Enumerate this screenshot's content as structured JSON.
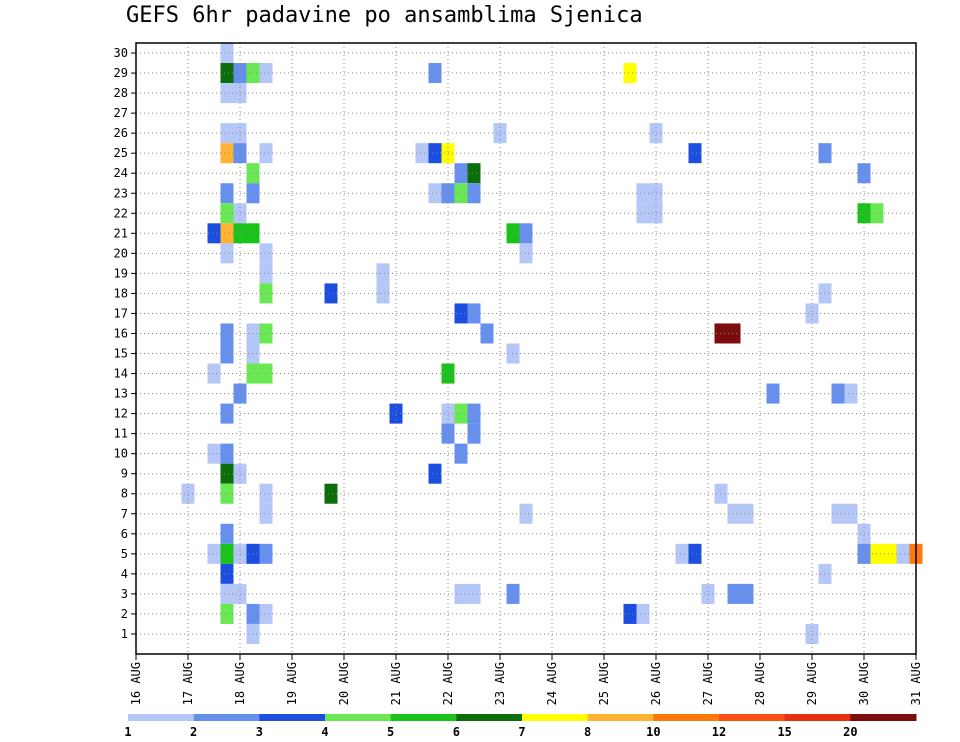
{
  "chart_data": {
    "type": "heatmap",
    "title": "GEFS 6hr padavine po ansamblima Sjenica",
    "xlabel": "",
    "ylabel": "",
    "x_tick_labels": [
      "16 AUG",
      "17 AUG",
      "18 AUG",
      "19 AUG",
      "20 AUG",
      "21 AUG",
      "22 AUG",
      "23 AUG",
      "24 AUG",
      "25 AUG",
      "26 AUG",
      "27 AUG",
      "28 AUG",
      "29 AUG",
      "30 AUG",
      "31 AUG"
    ],
    "x_range_steps": [
      0,
      60
    ],
    "y_tick_labels": [
      "1",
      "2",
      "3",
      "4",
      "5",
      "6",
      "7",
      "8",
      "9",
      "10",
      "11",
      "12",
      "13",
      "14",
      "15",
      "16",
      "17",
      "18",
      "19",
      "20",
      "21",
      "22",
      "23",
      "24",
      "25",
      "26",
      "27",
      "28",
      "29",
      "30"
    ],
    "grid": true,
    "colorbar": {
      "labels": [
        "1",
        "2",
        "3",
        "4",
        "5",
        "6",
        "7",
        "8",
        "10",
        "12",
        "15",
        "20"
      ],
      "colors": [
        "#b4c7f6",
        "#6790ee",
        "#1c4fe0",
        "#69e853",
        "#19c319",
        "#0b6e0b",
        "#ffff00",
        "#ffb233",
        "#ff7a0a",
        "#ff4e13",
        "#e6300f",
        "#7b0d0d"
      ]
    },
    "x_unit_note": "x index = 6-hour steps from 16 AUG 00Z",
    "cells": [
      [
        7,
        30,
        1
      ],
      [
        7,
        29,
        6
      ],
      [
        8,
        29,
        2
      ],
      [
        9,
        29,
        4
      ],
      [
        10,
        29,
        1
      ],
      [
        23,
        29,
        2
      ],
      [
        38,
        29,
        7
      ],
      [
        7,
        28,
        1
      ],
      [
        8,
        28,
        1
      ],
      [
        7,
        26,
        1
      ],
      [
        8,
        26,
        1
      ],
      [
        28,
        26,
        1
      ],
      [
        40,
        26,
        1
      ],
      [
        7,
        25,
        8
      ],
      [
        8,
        25,
        2
      ],
      [
        10,
        25,
        1
      ],
      [
        22,
        25,
        1
      ],
      [
        23,
        25,
        3
      ],
      [
        24,
        25,
        7
      ],
      [
        43,
        25,
        3
      ],
      [
        53,
        25,
        2
      ],
      [
        25,
        24,
        2
      ],
      [
        26,
        24,
        6
      ],
      [
        9,
        24,
        4
      ],
      [
        56,
        24,
        2
      ],
      [
        7,
        23,
        2
      ],
      [
        9,
        23,
        2
      ],
      [
        23,
        23,
        1
      ],
      [
        24,
        23,
        2
      ],
      [
        25,
        23,
        4
      ],
      [
        26,
        23,
        2
      ],
      [
        39,
        23,
        1
      ],
      [
        40,
        23,
        1
      ],
      [
        7,
        22,
        4
      ],
      [
        8,
        22,
        1
      ],
      [
        39,
        22,
        1
      ],
      [
        40,
        22,
        1
      ],
      [
        56,
        22,
        5
      ],
      [
        57,
        22,
        4
      ],
      [
        6,
        21,
        3
      ],
      [
        7,
        21,
        8
      ],
      [
        8,
        21,
        5
      ],
      [
        9,
        21,
        5
      ],
      [
        29,
        21,
        5
      ],
      [
        30,
        21,
        2
      ],
      [
        7,
        20,
        1
      ],
      [
        10,
        20,
        1
      ],
      [
        30,
        20,
        1
      ],
      [
        10,
        19,
        1
      ],
      [
        19,
        19,
        1
      ],
      [
        10,
        18,
        4
      ],
      [
        15,
        18,
        3
      ],
      [
        19,
        18,
        1
      ],
      [
        53,
        18,
        1
      ],
      [
        52,
        17,
        1
      ],
      [
        25,
        17,
        3
      ],
      [
        26,
        17,
        2
      ],
      [
        7,
        16,
        2
      ],
      [
        9,
        16,
        1
      ],
      [
        10,
        16,
        4
      ],
      [
        27,
        16,
        2
      ],
      [
        45,
        16,
        12
      ],
      [
        46,
        16,
        12
      ],
      [
        7,
        15,
        2
      ],
      [
        9,
        15,
        1
      ],
      [
        29,
        15,
        1
      ],
      [
        6,
        14,
        1
      ],
      [
        9,
        14,
        4
      ],
      [
        10,
        14,
        4
      ],
      [
        24,
        14,
        5
      ],
      [
        8,
        13,
        2
      ],
      [
        49,
        13,
        2
      ],
      [
        54,
        13,
        2
      ],
      [
        55,
        13,
        1
      ],
      [
        7,
        12,
        2
      ],
      [
        20,
        12,
        3
      ],
      [
        24,
        12,
        1
      ],
      [
        25,
        12,
        4
      ],
      [
        26,
        12,
        2
      ],
      [
        24,
        11,
        2
      ],
      [
        26,
        11,
        2
      ],
      [
        6,
        10,
        1
      ],
      [
        7,
        10,
        2
      ],
      [
        25,
        10,
        2
      ],
      [
        7,
        9,
        6
      ],
      [
        8,
        9,
        1
      ],
      [
        23,
        9,
        3
      ],
      [
        4,
        8,
        1
      ],
      [
        7,
        8,
        4
      ],
      [
        10,
        8,
        1
      ],
      [
        15,
        8,
        6
      ],
      [
        45,
        8,
        1
      ],
      [
        10,
        7,
        1
      ],
      [
        30,
        7,
        1
      ],
      [
        46,
        7,
        1
      ],
      [
        47,
        7,
        1
      ],
      [
        54,
        7,
        1
      ],
      [
        55,
        7,
        1
      ],
      [
        7,
        6,
        2
      ],
      [
        56,
        6,
        1
      ],
      [
        6,
        5,
        1
      ],
      [
        7,
        5,
        5
      ],
      [
        8,
        5,
        1
      ],
      [
        9,
        5,
        3
      ],
      [
        10,
        5,
        2
      ],
      [
        42,
        5,
        1
      ],
      [
        43,
        5,
        3
      ],
      [
        56,
        5,
        2
      ],
      [
        57,
        5,
        7
      ],
      [
        58,
        5,
        7
      ],
      [
        59,
        5,
        1
      ],
      [
        60,
        5,
        9
      ],
      [
        7,
        4,
        3
      ],
      [
        53,
        4,
        1
      ],
      [
        7,
        3,
        1
      ],
      [
        8,
        3,
        1
      ],
      [
        25,
        3,
        1
      ],
      [
        26,
        3,
        1
      ],
      [
        29,
        3,
        2
      ],
      [
        44,
        3,
        1
      ],
      [
        46,
        3,
        2
      ],
      [
        47,
        3,
        2
      ],
      [
        7,
        2,
        4
      ],
      [
        9,
        2,
        2
      ],
      [
        10,
        2,
        1
      ],
      [
        38,
        2,
        3
      ],
      [
        39,
        2,
        1
      ],
      [
        9,
        1,
        1
      ],
      [
        52,
        1,
        1
      ]
    ]
  }
}
